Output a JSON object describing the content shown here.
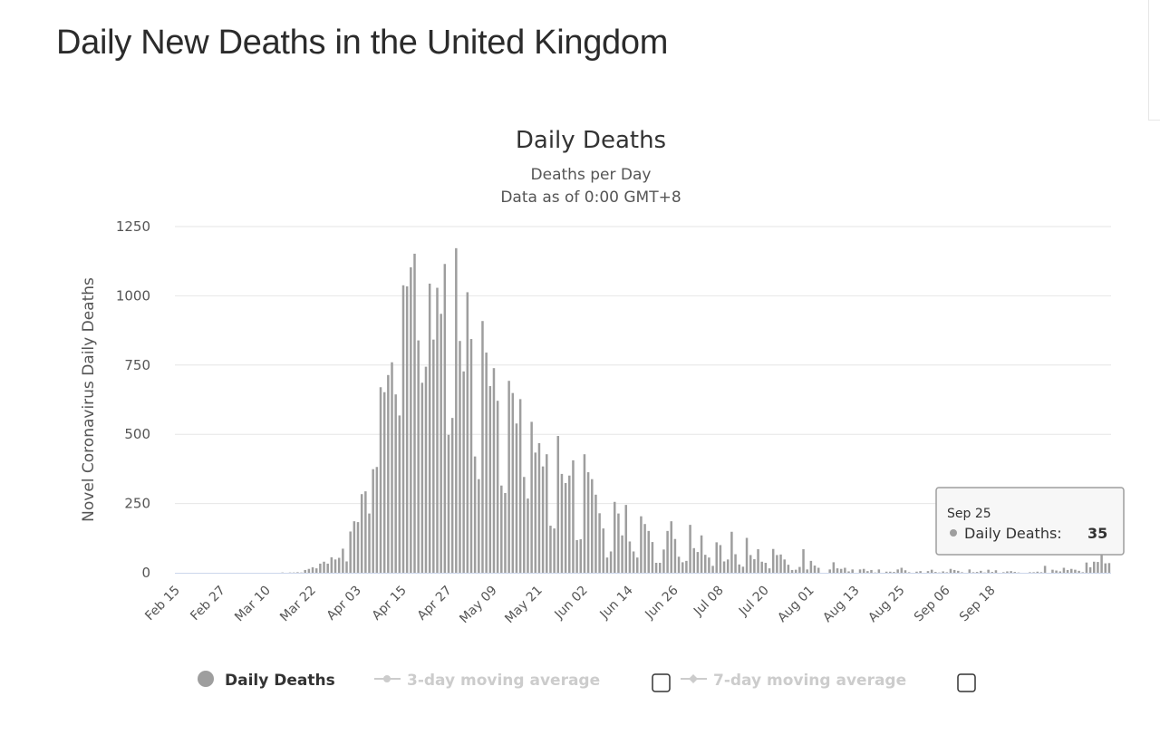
{
  "page": {
    "title": "Daily New Deaths in the United Kingdom"
  },
  "colors": {
    "bar": "#9e9e9e",
    "grid": "#e6e6e6",
    "axis": "#ccd6eb",
    "legend_active": "#333333",
    "legend_inactive": "#cccccc"
  },
  "chart_data": {
    "type": "bar",
    "title": "Daily Deaths",
    "subtitle_line1": "Deaths per Day",
    "subtitle_line2": "Data as of 0:00 GMT+8",
    "ylabel": "Novel Coronavirus Daily Deaths",
    "xlabel": "",
    "ylim": [
      0,
      1250
    ],
    "yticks": [
      "0",
      "250",
      "500",
      "750",
      "1000",
      "1250"
    ],
    "grid": true,
    "legend_position": "bottom",
    "start_date": "Feb 15",
    "x_tick_labels": [
      "Feb 15",
      "Feb 27",
      "Mar 10",
      "Mar 22",
      "Apr 03",
      "Apr 15",
      "Apr 27",
      "May 09",
      "May 21",
      "Jun 02",
      "Jun 14",
      "Jun 26",
      "Jul 08",
      "Jul 20",
      "Aug 01",
      "Aug 13",
      "Aug 25",
      "Sep 06",
      "Sep 18"
    ],
    "series": [
      {
        "name": "Daily Deaths",
        "values": [
          0,
          0,
          0,
          0,
          0,
          0,
          0,
          0,
          0,
          0,
          0,
          0,
          0,
          0,
          0,
          0,
          0,
          0,
          0,
          0,
          0,
          0,
          0,
          0,
          0,
          0,
          0,
          0,
          1,
          0,
          1,
          1,
          2,
          1,
          10,
          14,
          20,
          16,
          33,
          40,
          33,
          56,
          48,
          54,
          87,
          41,
          149,
          186,
          183,
          284,
          294,
          214,
          374,
          382,
          670,
          652,
          714,
          760,
          644,
          568,
          1038,
          1034,
          1103,
          1152,
          839,
          686,
          744,
          1044,
          842,
          1029,
          935,
          1115,
          498,
          559,
          1172,
          837,
          727,
          1013,
          844,
          420,
          338,
          909,
          795,
          674,
          739,
          621,
          315,
          288,
          693,
          649,
          539,
          627,
          346,
          268,
          545,
          434,
          468,
          384,
          428,
          170,
          160,
          494,
          357,
          324,
          351,
          406,
          118,
          121,
          428,
          363,
          338,
          282,
          215,
          160,
          55,
          77,
          256,
          214,
          135,
          245,
          113,
          77,
          55,
          204,
          176,
          151,
          111,
          36,
          36,
          84,
          151,
          186,
          122,
          58,
          38,
          43,
          173,
          89,
          75,
          135,
          65,
          55,
          25,
          110,
          100,
          41,
          48,
          148,
          67,
          30,
          22,
          126,
          64,
          49,
          85,
          40,
          36,
          16,
          86,
          64,
          66,
          48,
          29,
          10,
          11,
          21,
          85,
          12,
          43,
          26,
          18,
          0,
          0,
          12,
          38,
          16,
          14,
          18,
          5,
          12,
          0,
          12,
          14,
          6,
          10,
          1,
          12,
          0,
          4,
          4,
          3,
          12,
          18,
          9,
          2,
          0,
          4,
          6,
          0,
          6,
          11,
          3,
          1,
          5,
          2,
          14,
          10,
          7,
          2,
          0,
          12,
          2,
          3,
          7,
          1,
          11,
          3,
          9,
          0,
          2,
          5,
          6,
          3,
          1,
          0,
          0,
          2,
          2,
          4,
          2,
          25,
          0,
          11,
          8,
          5,
          18,
          10,
          14,
          11,
          7,
          2,
          37,
          20,
          40,
          39,
          71,
          34,
          35
        ],
        "tooltip": {
          "date": "Sep 25",
          "value": 35
        }
      },
      {
        "name": "3-day moving average",
        "enabled": false
      },
      {
        "name": "7-day moving average",
        "enabled": false
      }
    ]
  },
  "tooltip": {
    "date": "Sep 25",
    "label": "Daily Deaths:",
    "value": "35"
  },
  "legend": {
    "daily": "Daily Deaths",
    "ma3": "3-day moving average",
    "ma7": "7-day moving average"
  }
}
